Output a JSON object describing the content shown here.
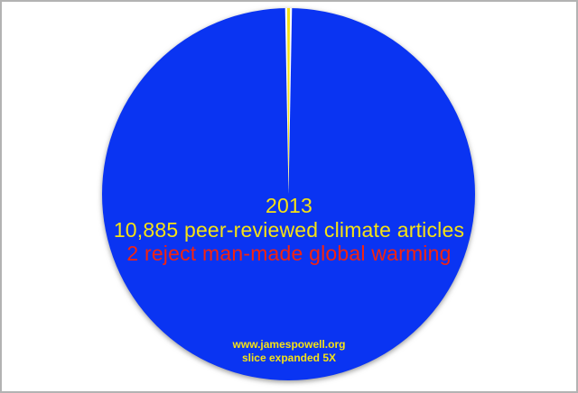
{
  "page": {
    "background": "#ffffff",
    "border_color": "#b3b3b3"
  },
  "chart_data": {
    "type": "pie",
    "title": "2013",
    "total": 10885,
    "slice_expansion_factor": 5,
    "slices": [
      {
        "name": "peer-reviewed climate articles not rejecting man-made global warming",
        "value": 10883,
        "color": "#0a34f2"
      },
      {
        "name": "articles rejecting man-made global warming",
        "value": 2,
        "color": "#f6e214",
        "expanded": "5X",
        "separator_color": "#ffffff"
      }
    ],
    "center_lines": [
      {
        "text": "2013",
        "color": "#f6e214"
      },
      {
        "text": "10,885 peer-reviewed climate articles",
        "color": "#f6e214"
      },
      {
        "text": "2 reject man-made global warming",
        "color": "#f5230e"
      }
    ],
    "footer": {
      "source": "www.jamespowell.org",
      "note": "slice expanded 5X",
      "color": "#f6e214"
    },
    "legend_position": "none",
    "grid": false
  }
}
